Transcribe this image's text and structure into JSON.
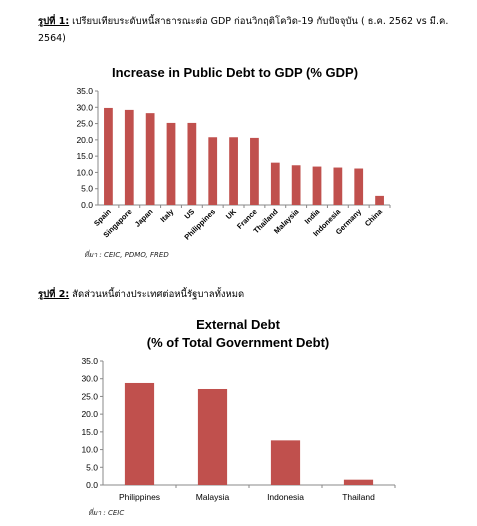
{
  "figure1": {
    "caption_label": "รูปที่ 1:",
    "caption_text": "เปรียบเทียบระดับหนี้สาธารณะต่อ GDP ก่อนวิกฤติโควิด-19 กับปัจจุบัน ( ธ.ค. 2562 vs มี.ค. 2564)",
    "source": "ที่มา : CEIC, PDMO, FRED"
  },
  "figure2": {
    "caption_label": "รูปที่ 2:",
    "caption_text": "สัดส่วนหนี้ต่างประเทศต่อหนี้รัฐบาลทั้งหมด",
    "source": "ที่มา : CEIC"
  },
  "colors": {
    "bar": "#c0504d",
    "axis": "#888888",
    "text": "#000000"
  },
  "chart_data": [
    {
      "type": "bar",
      "title": "Increase in Public Debt to GDP (% GDP)",
      "xlabel": "",
      "ylabel": "",
      "ylim": [
        0,
        35
      ],
      "yticks": [
        "0.0",
        "5.0",
        "10.0",
        "15.0",
        "20.0",
        "25.0",
        "30.0",
        "35.0"
      ],
      "grid": false,
      "categories": [
        "Spain",
        "Singapore",
        "Japan",
        "Italy",
        "US",
        "Philippines",
        "UK",
        "France",
        "Thailand",
        "Malaysia",
        "India",
        "Indonesia",
        "Germany",
        "China"
      ],
      "values": [
        29.8,
        29.2,
        28.2,
        25.2,
        25.2,
        20.8,
        20.8,
        20.6,
        13.0,
        12.2,
        11.8,
        11.5,
        11.2,
        2.8
      ]
    },
    {
      "type": "bar",
      "title": "External Debt",
      "subtitle": "(% of Total Government Debt)",
      "xlabel": "",
      "ylabel": "",
      "ylim": [
        0,
        35
      ],
      "yticks": [
        "0.0",
        "5.0",
        "10.0",
        "15.0",
        "20.0",
        "25.0",
        "30.0",
        "35.0"
      ],
      "grid": false,
      "categories": [
        "Philippines",
        "Malaysia",
        "Indonesia",
        "Thailand"
      ],
      "values": [
        28.8,
        27.1,
        12.6,
        1.5
      ]
    }
  ]
}
